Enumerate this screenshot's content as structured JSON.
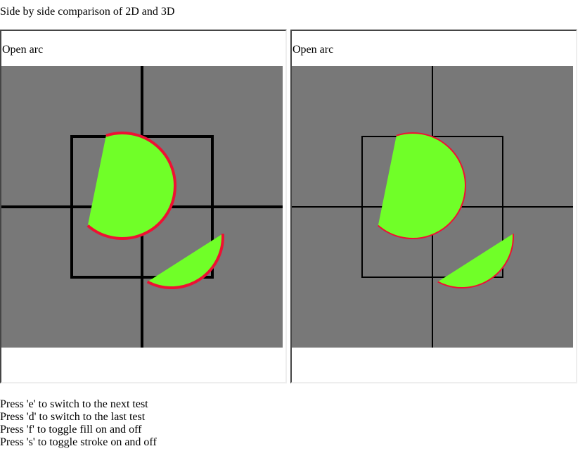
{
  "page": {
    "title": "Side by side comparison of 2D and 3D"
  },
  "panels": [
    {
      "id": "2d",
      "label": "Open arc"
    },
    {
      "id": "3d",
      "label": "Open arc"
    }
  ],
  "colors": {
    "canvas_bg": "#787878",
    "fill": "#70ff28",
    "stroke": "#ee1133",
    "guides": "#000000"
  },
  "help": [
    "Press 'e' to switch to the next test",
    "Press 'd' to switch to the last test",
    "Press 'f' to toggle fill on and off",
    "Press 's' to toggle stroke on and off"
  ]
}
